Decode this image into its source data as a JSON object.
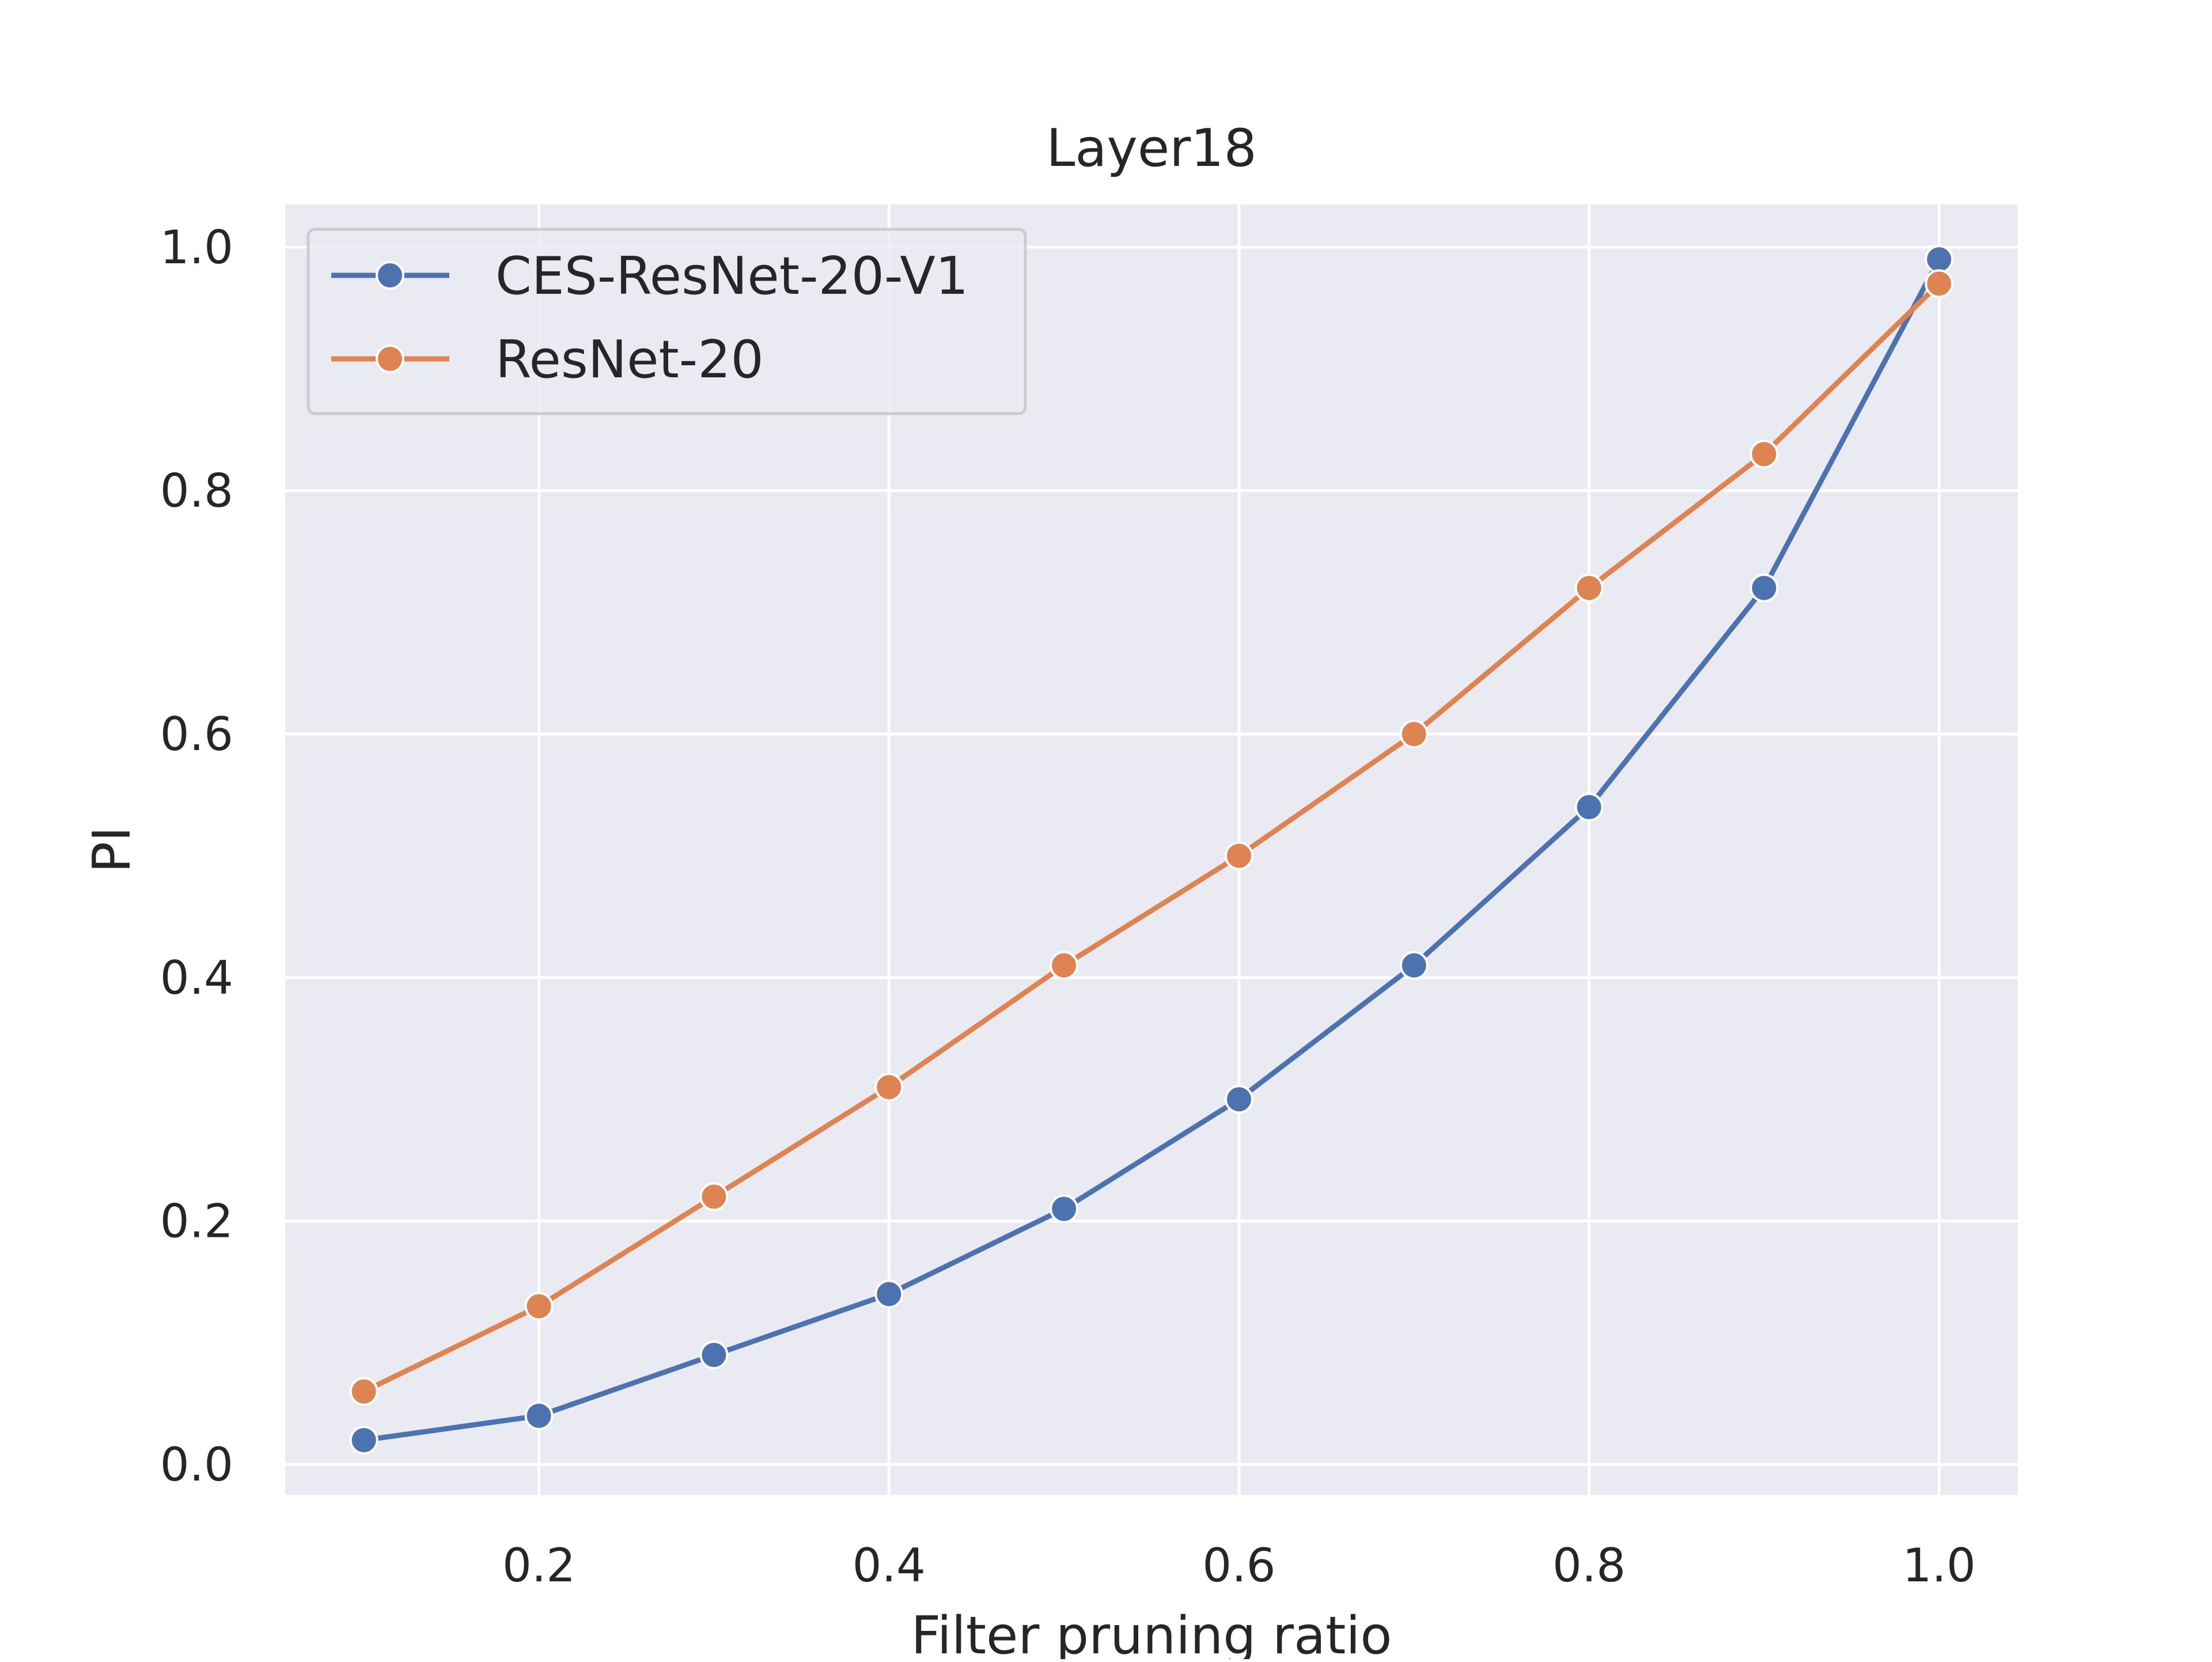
{
  "chart_data": {
    "type": "line",
    "title": "Layer18",
    "xlabel": "Filter pruning ratio",
    "ylabel": "PI",
    "xlim": [
      0.055,
      1.045
    ],
    "ylim": [
      -0.025,
      1.035
    ],
    "xticks": [
      0.2,
      0.4,
      0.6,
      0.8,
      1.0
    ],
    "xtick_labels": [
      "0.2",
      "0.4",
      "0.6",
      "0.8",
      "1.0"
    ],
    "yticks": [
      0.0,
      0.2,
      0.4,
      0.6,
      0.8,
      1.0
    ],
    "ytick_labels": [
      "0.0",
      "0.2",
      "0.4",
      "0.6",
      "0.8",
      "1.0"
    ],
    "grid": true,
    "legend_position": "top-left",
    "x": [
      0.1,
      0.2,
      0.3,
      0.4,
      0.5,
      0.6,
      0.7,
      0.8,
      0.9,
      1.0
    ],
    "series": [
      {
        "name": "CES-ResNet-20-V1",
        "color": "#4c72b0",
        "values": [
          0.02,
          0.04,
          0.09,
          0.14,
          0.21,
          0.3,
          0.41,
          0.54,
          0.72,
          0.99
        ]
      },
      {
        "name": "ResNet-20",
        "color": "#dd8452",
        "values": [
          0.06,
          0.13,
          0.22,
          0.31,
          0.41,
          0.5,
          0.6,
          0.72,
          0.83,
          0.97
        ]
      }
    ]
  }
}
